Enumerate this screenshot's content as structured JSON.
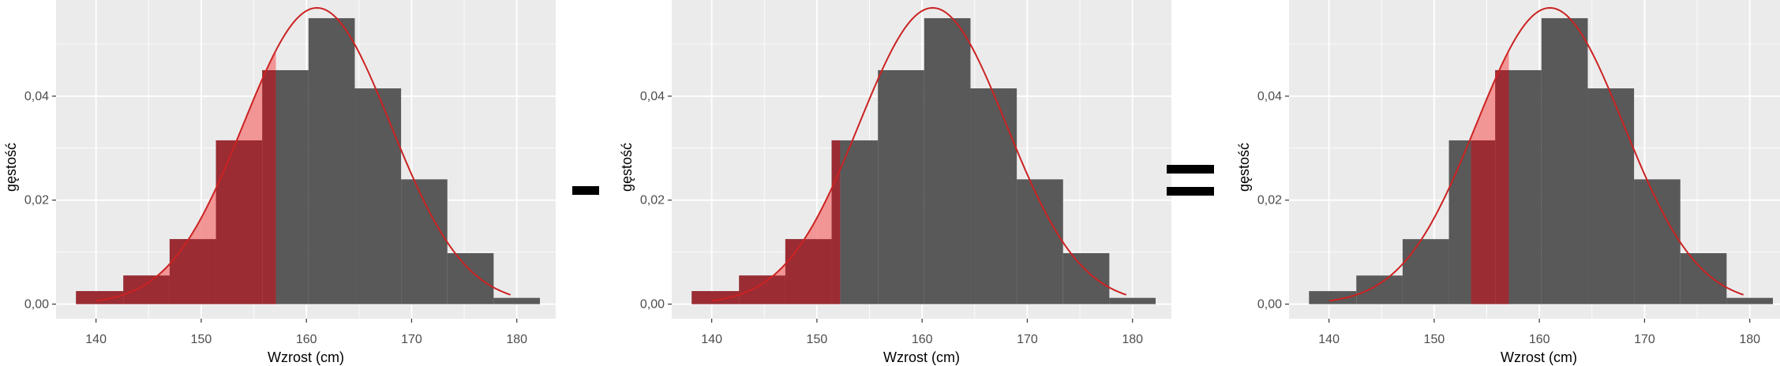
{
  "chart_data": [
    {
      "type": "bar",
      "title": "",
      "xlabel": "Wzrost (cm)",
      "ylabel": "gęstość",
      "x_ticks": [
        140,
        150,
        160,
        170,
        180
      ],
      "x_tick_labels": [
        "140",
        "150",
        "160",
        "170",
        "180"
      ],
      "y_ticks": [
        0,
        0.02,
        0.04
      ],
      "y_tick_labels": [
        "0,00",
        "0,02",
        "0,04"
      ],
      "xlim": [
        136.2,
        183.7
      ],
      "ylim": [
        -0.0028,
        0.0585
      ],
      "grid": true,
      "bins": [
        {
          "x0": 138.1,
          "x1": 142.6,
          "density": 0.0025
        },
        {
          "x0": 142.6,
          "x1": 147.0,
          "density": 0.0055
        },
        {
          "x0": 147.0,
          "x1": 151.4,
          "density": 0.0125
        },
        {
          "x0": 151.4,
          "x1": 155.8,
          "density": 0.0315
        },
        {
          "x0": 155.8,
          "x1": 160.2,
          "density": 0.045
        },
        {
          "x0": 160.2,
          "x1": 164.6,
          "density": 0.055
        },
        {
          "x0": 164.6,
          "x1": 169.0,
          "density": 0.0415
        },
        {
          "x0": 169.0,
          "x1": 173.4,
          "density": 0.024
        },
        {
          "x0": 173.4,
          "x1": 177.8,
          "density": 0.0098
        },
        {
          "x0": 177.8,
          "x1": 182.2,
          "density": 0.0012
        }
      ],
      "normal_curve": {
        "mean": 161,
        "sd": 7,
        "x_range": [
          140,
          179.5
        ]
      },
      "shaded_region": [
        138.1,
        157.1
      ],
      "colors": {
        "bars": "#595959",
        "curve": "#cc2222",
        "shade_dark": "#9b2c33",
        "shade_light": "#f28c8c",
        "panel": "#ebebeb",
        "grid": "#ffffff"
      }
    },
    {
      "type": "bar",
      "title": "",
      "xlabel": "Wzrost (cm)",
      "ylabel": "gęstość",
      "x_ticks": [
        140,
        150,
        160,
        170,
        180
      ],
      "x_tick_labels": [
        "140",
        "150",
        "160",
        "170",
        "180"
      ],
      "y_ticks": [
        0,
        0.02,
        0.04
      ],
      "y_tick_labels": [
        "0,00",
        "0,02",
        "0,04"
      ],
      "xlim": [
        136.2,
        183.7
      ],
      "ylim": [
        -0.0028,
        0.0585
      ],
      "grid": true,
      "bins": [
        {
          "x0": 138.1,
          "x1": 142.6,
          "density": 0.0025
        },
        {
          "x0": 142.6,
          "x1": 147.0,
          "density": 0.0055
        },
        {
          "x0": 147.0,
          "x1": 151.4,
          "density": 0.0125
        },
        {
          "x0": 151.4,
          "x1": 155.8,
          "density": 0.0315
        },
        {
          "x0": 155.8,
          "x1": 160.2,
          "density": 0.045
        },
        {
          "x0": 160.2,
          "x1": 164.6,
          "density": 0.055
        },
        {
          "x0": 164.6,
          "x1": 169.0,
          "density": 0.0415
        },
        {
          "x0": 169.0,
          "x1": 173.4,
          "density": 0.024
        },
        {
          "x0": 173.4,
          "x1": 177.8,
          "density": 0.0098
        },
        {
          "x0": 177.8,
          "x1": 182.2,
          "density": 0.0012
        }
      ],
      "normal_curve": {
        "mean": 161,
        "sd": 7,
        "x_range": [
          140,
          179.5
        ]
      },
      "shaded_region": [
        138.1,
        152.2
      ],
      "colors": {
        "bars": "#595959",
        "curve": "#cc2222",
        "shade_dark": "#9b2c33",
        "shade_light": "#f28c8c",
        "panel": "#ebebeb",
        "grid": "#ffffff"
      }
    },
    {
      "type": "bar",
      "title": "",
      "xlabel": "Wzrost (cm)",
      "ylabel": "gęstość",
      "x_ticks": [
        140,
        150,
        160,
        170,
        180
      ],
      "x_tick_labels": [
        "140",
        "150",
        "160",
        "170",
        "180"
      ],
      "y_ticks": [
        0,
        0.02,
        0.04
      ],
      "y_tick_labels": [
        "0,00",
        "0,02",
        "0,04"
      ],
      "xlim": [
        136.2,
        183.7
      ],
      "ylim": [
        -0.0028,
        0.0585
      ],
      "grid": true,
      "bins": [
        {
          "x0": 138.1,
          "x1": 142.6,
          "density": 0.0025
        },
        {
          "x0": 142.6,
          "x1": 147.0,
          "density": 0.0055
        },
        {
          "x0": 147.0,
          "x1": 151.4,
          "density": 0.0125
        },
        {
          "x0": 151.4,
          "x1": 155.8,
          "density": 0.0315
        },
        {
          "x0": 155.8,
          "x1": 160.2,
          "density": 0.045
        },
        {
          "x0": 160.2,
          "x1": 164.6,
          "density": 0.055
        },
        {
          "x0": 164.6,
          "x1": 169.0,
          "density": 0.0415
        },
        {
          "x0": 169.0,
          "x1": 173.4,
          "density": 0.024
        },
        {
          "x0": 173.4,
          "x1": 177.8,
          "density": 0.0098
        },
        {
          "x0": 177.8,
          "x1": 182.2,
          "density": 0.0012
        }
      ],
      "normal_curve": {
        "mean": 161,
        "sd": 7,
        "x_range": [
          140,
          179.5
        ]
      },
      "shaded_region": [
        153.5,
        157.1
      ],
      "colors": {
        "bars": "#595959",
        "curve": "#cc2222",
        "shade_dark": "#9b2c33",
        "shade_light": "#f28c8c",
        "panel": "#ebebeb",
        "grid": "#ffffff"
      }
    }
  ],
  "operators": [
    "minus-sign",
    "equals-sign"
  ]
}
